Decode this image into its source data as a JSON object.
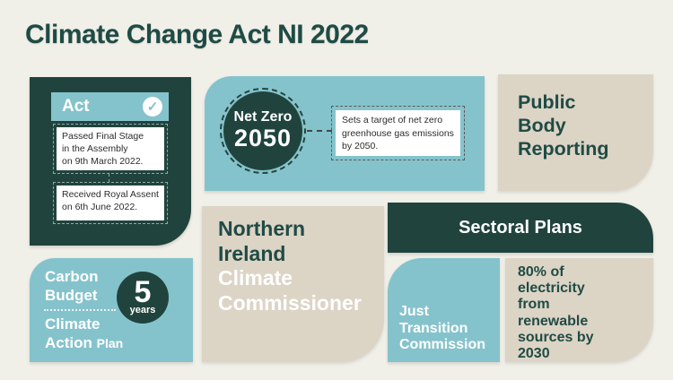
{
  "title": "Climate Change Act NI 2022",
  "act": {
    "header_label": "Act",
    "check_icon_glyph": "✓",
    "milestone_1": "Passed Final Stage\nin the Assembly\non 9th March 2022.",
    "milestone_2": "Received Royal Assent\non 6th June 2022."
  },
  "net_zero": {
    "badge_title": "Net Zero",
    "badge_year": "2050",
    "description": "Sets a target of net zero\ngreenhouse gas emissions\nby 2050."
  },
  "public_body": {
    "label": "Public\nBody\nReporting"
  },
  "commissioner": {
    "line_dark": "Northern\nIreland",
    "line_light": "Climate\nCommissioner"
  },
  "sectoral": {
    "label": "Sectoral Plans"
  },
  "carbon": {
    "budget_label": "Carbon\nBudget",
    "plan_label_main": "Climate\nAction",
    "plan_label_small": "Plan",
    "badge_value": "5",
    "badge_unit": "years"
  },
  "just_transition": {
    "label": "Just\nTransition\nCommission"
  },
  "renewables": {
    "label": "80% of\nelectricity\nfrom\nrenewable\nsources by\n2030"
  },
  "colors": {
    "dark_teal": "#20443d",
    "light_blue": "#85c3cc",
    "beige": "#dcd4c5",
    "background": "#f0efe8",
    "heading_text": "#1f4b45"
  }
}
